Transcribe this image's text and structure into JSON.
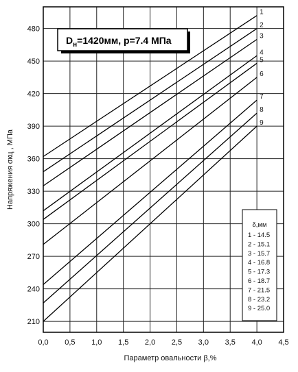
{
  "chart_data": {
    "type": "line",
    "xlabel": "Параметр овальности  β,%",
    "ylabel": "Напряжения  σкц , МПа",
    "xlim": [
      0,
      4.5
    ],
    "ylim": [
      200,
      500
    ],
    "x_ticks": [
      "0,0",
      "0,5",
      "1,0",
      "1,5",
      "2,0",
      "2,5",
      "3,0",
      "3,5",
      "4,0",
      "4,5"
    ],
    "y_ticks": [
      "210",
      "240",
      "270",
      "300",
      "330",
      "360",
      "390",
      "420",
      "450",
      "480"
    ],
    "y_tick_values": [
      210,
      240,
      270,
      300,
      330,
      360,
      390,
      420,
      450,
      480
    ],
    "grid": true,
    "annotation": {
      "base": "D",
      "sub": "н",
      "rest": "=1420мм, p=7.4 МПа"
    },
    "legend": {
      "title": "δ,мм",
      "position": "bottom-right",
      "entries": [
        "1 - 14.5",
        "2 - 15.1",
        "3 - 15.7",
        "4 - 16.8",
        "5 - 17.3",
        "6 - 18.7",
        "7 - 21.5",
        "8 - 23.2",
        "9 - 25.0"
      ]
    },
    "series": [
      {
        "label": "1",
        "x": [
          0,
          4.0
        ],
        "y": [
          362,
          492
        ]
      },
      {
        "label": "2",
        "x": [
          0,
          4.0
        ],
        "y": [
          348,
          480
        ]
      },
      {
        "label": "3",
        "x": [
          0,
          4.0
        ],
        "y": [
          335,
          470
        ]
      },
      {
        "label": "4",
        "x": [
          0,
          4.0
        ],
        "y": [
          312,
          455
        ]
      },
      {
        "label": "5",
        "x": [
          0,
          4.0
        ],
        "y": [
          304,
          448
        ]
      },
      {
        "label": "6",
        "x": [
          0,
          4.0
        ],
        "y": [
          281,
          435
        ]
      },
      {
        "label": "7",
        "x": [
          0,
          4.0
        ],
        "y": [
          244,
          414
        ]
      },
      {
        "label": "8",
        "x": [
          0,
          4.0
        ],
        "y": [
          227,
          402
        ]
      },
      {
        "label": "9",
        "x": [
          0,
          4.0
        ],
        "y": [
          210,
          390
        ]
      }
    ]
  }
}
